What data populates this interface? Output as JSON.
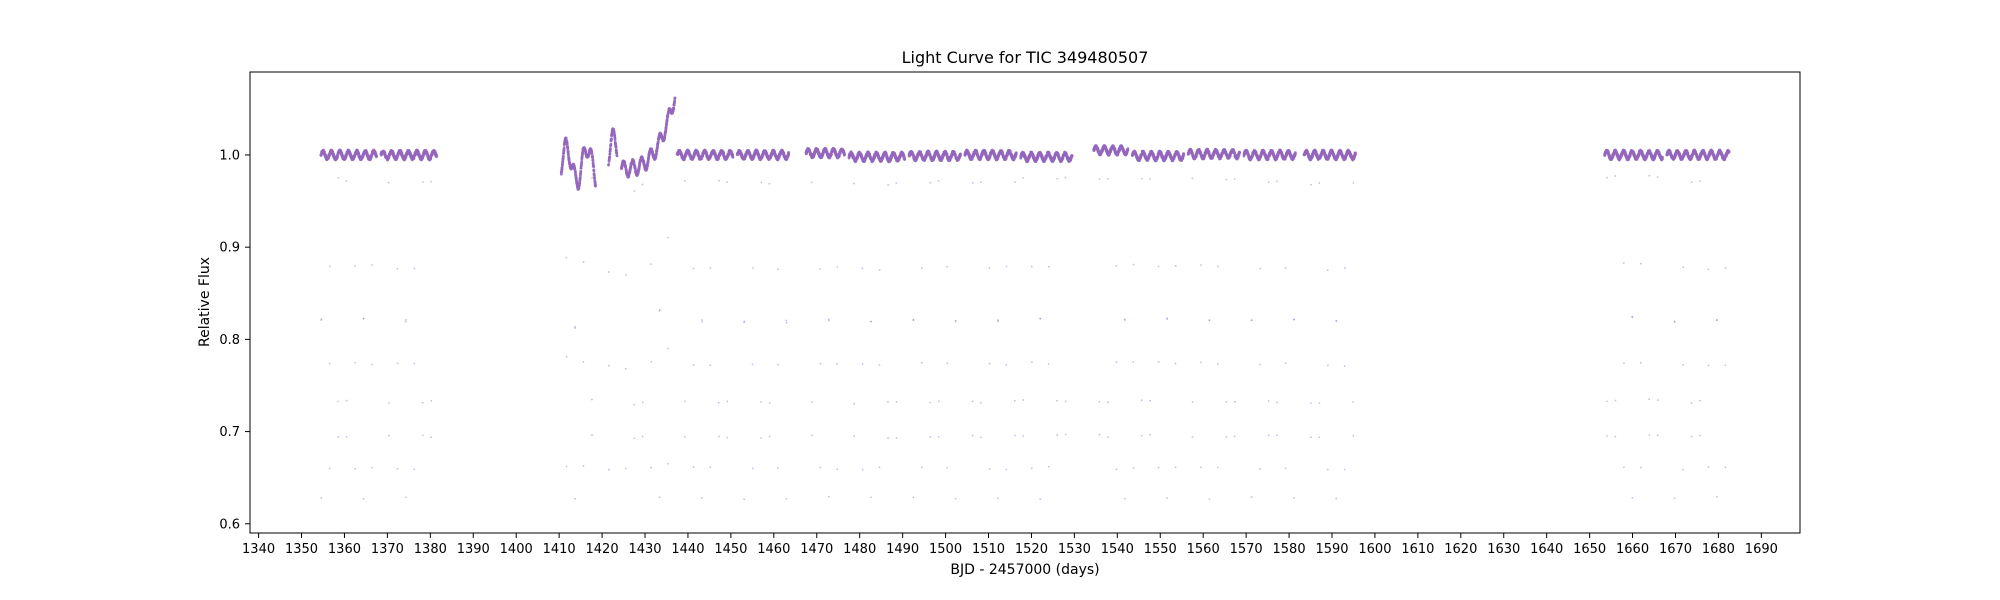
{
  "chart_data": {
    "type": "scatter",
    "title": "Light Curve for TIC 349480507",
    "xlabel": "BJD - 2457000 (days)",
    "ylabel": "Relative Flux",
    "xlim": [
      1338,
      1699
    ],
    "ylim": [
      0.59,
      1.09
    ],
    "xticks": [
      1340,
      1350,
      1360,
      1370,
      1380,
      1390,
      1400,
      1410,
      1420,
      1430,
      1440,
      1450,
      1460,
      1470,
      1480,
      1490,
      1500,
      1510,
      1520,
      1530,
      1540,
      1550,
      1560,
      1570,
      1580,
      1590,
      1600,
      1610,
      1620,
      1630,
      1640,
      1650,
      1660,
      1670,
      1680,
      1690
    ],
    "yticks": [
      0.6,
      0.7,
      0.8,
      0.9,
      1.0
    ],
    "grid": false,
    "marker_color": "#9467bd",
    "series": [
      {
        "period_days": 1.97,
        "eclipse_depth_min": 0.628,
        "segments": [
          {
            "start": 1354.5,
            "end": 1367.5,
            "base": 1.0
          },
          {
            "start": 1368.5,
            "end": 1381.5,
            "base": 1.0
          },
          {
            "start": 1410.5,
            "end": 1418.5,
            "base": 0.99,
            "variability": "high"
          },
          {
            "start": 1421.5,
            "end": 1423.5,
            "base": 1.0,
            "variability": "high"
          },
          {
            "start": 1424.5,
            "end": 1437.0,
            "base": 1.0,
            "variability": "trend",
            "peak": 1.065
          },
          {
            "start": 1437.5,
            "end": 1450.5,
            "base": 1.0
          },
          {
            "start": 1451.5,
            "end": 1463.5,
            "base": 1.0
          },
          {
            "start": 1467.5,
            "end": 1476.5,
            "base": 1.002
          },
          {
            "start": 1477.5,
            "end": 1490.5,
            "base": 0.998
          },
          {
            "start": 1491.5,
            "end": 1503.5,
            "base": 0.999
          },
          {
            "start": 1504.5,
            "end": 1516.5,
            "base": 1.0
          },
          {
            "start": 1517.5,
            "end": 1529.5,
            "base": 0.998
          },
          {
            "start": 1534.5,
            "end": 1542.5,
            "base": 1.005
          },
          {
            "start": 1543.5,
            "end": 1555.5,
            "base": 0.999
          },
          {
            "start": 1556.5,
            "end": 1568.5,
            "base": 1.001
          },
          {
            "start": 1569.5,
            "end": 1581.5,
            "base": 1.0
          },
          {
            "start": 1583.5,
            "end": 1595.5,
            "base": 1.0
          },
          {
            "start": 1653.5,
            "end": 1667.0,
            "base": 1.0
          },
          {
            "start": 1668.0,
            "end": 1682.5,
            "base": 1.0
          }
        ]
      }
    ]
  }
}
